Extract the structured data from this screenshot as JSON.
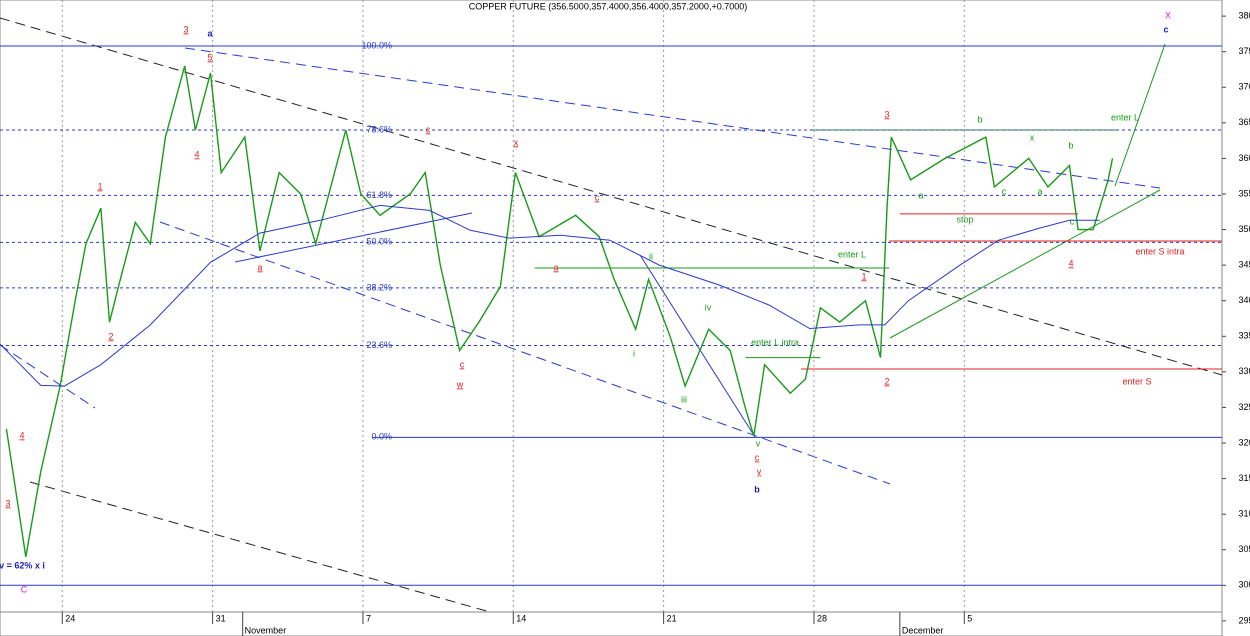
{
  "chart_data": {
    "type": "line",
    "title": "COPPER FUTURE (356.5000,357.4000,356.4000,357.2000,+0.7000)",
    "xlim": [
      21.1,
      78
    ],
    "ylim": [
      294,
      381
    ],
    "yticks": [
      295,
      300,
      305,
      310,
      315,
      320,
      325,
      330,
      335,
      340,
      345,
      350,
      355,
      360,
      365,
      370,
      375,
      380
    ],
    "xticks": [
      {
        "value": 24,
        "label": "24"
      },
      {
        "value": 31,
        "label": "31"
      },
      {
        "value": 38,
        "label": "7"
      },
      {
        "value": 45,
        "label": "14"
      },
      {
        "value": 52,
        "label": "21"
      },
      {
        "value": 59,
        "label": "28"
      },
      {
        "value": 66,
        "label": "5"
      }
    ],
    "months": [
      {
        "value": 32.4,
        "label": "November"
      },
      {
        "value": 63.0,
        "label": "December"
      }
    ],
    "grid": true,
    "series": [
      {
        "color": "#1a9a1a",
        "x": [
          21.4,
          22.3,
          23.0,
          23.9,
          24.6,
          25.1,
          25.8,
          26.2,
          26.7,
          27.4,
          28.1,
          28.8,
          29.7,
          30.2,
          30.9,
          31.4,
          32.5,
          33.2,
          34.1,
          35.1,
          35.8,
          37.2,
          37.9,
          38.8,
          40.2,
          40.9,
          41.6,
          42.5,
          43.4,
          44.4,
          45.1,
          46.2,
          47.9,
          49.0,
          49.7,
          50.7,
          51.3,
          52.3,
          53.0,
          54.1,
          55.1,
          55.8,
          56.2,
          56.7,
          57.9,
          58.6,
          59.3,
          60.2,
          61.4,
          62.1,
          62.4,
          62.6,
          63.5,
          65.1,
          67.0,
          67.4,
          69.0,
          69.9,
          70.9,
          71.3,
          72.0,
          72.7,
          72.9
        ],
        "values": [
          322,
          304,
          316,
          328,
          340,
          348,
          353,
          337,
          343,
          351,
          348,
          363,
          373,
          364,
          372,
          358,
          363,
          347,
          358,
          355,
          348,
          364,
          355,
          352,
          355,
          358,
          345,
          333,
          337,
          342,
          358,
          349,
          352,
          349,
          343,
          336,
          343,
          335,
          328,
          336,
          333,
          325,
          321,
          331,
          327,
          329,
          339,
          337,
          340,
          332,
          353,
          363,
          357,
          360,
          363,
          356,
          360,
          356,
          359,
          350,
          350,
          357,
          360
        ]
      },
      {
        "color": "#2a3acb",
        "x": [
          21.1,
          23.0,
          24.1,
          25.8,
          28.1,
          30.9,
          33.2,
          36.0,
          38.8,
          41.1,
          43.0,
          44.8,
          47.2,
          49.5,
          51.8,
          54.6,
          56.9,
          58.8,
          61.1,
          62.3,
          63.4,
          65.8,
          67.6,
          69.5,
          70.9,
          72.3
        ],
        "values": [
          333.9,
          328.1,
          328,
          331,
          336.6,
          345.4,
          349.5,
          351.3,
          353.4,
          352.7,
          349.9,
          348.8,
          349.2,
          348.5,
          345,
          342.2,
          339.4,
          336.1,
          336.6,
          336.6,
          340,
          345,
          348.5,
          350.2,
          351.3,
          351.3
        ]
      }
    ],
    "fib_levels": [
      {
        "label": "100.0%",
        "value": 375.8,
        "style": "solid"
      },
      {
        "label": "78.6%",
        "value": 364.0,
        "style": "dotted"
      },
      {
        "label": "61.8%",
        "value": 354.8,
        "style": "dotted"
      },
      {
        "label": "50.0%",
        "value": 348.2,
        "style": "dotted"
      },
      {
        "label": "38.2%",
        "value": 341.8,
        "style": "dotted"
      },
      {
        "label": "23.6%",
        "value": 333.7,
        "style": "dotted"
      },
      {
        "label": "0.0%",
        "value": 320.8,
        "style": "solid"
      }
    ],
    "levels": [
      {
        "value": 300,
        "color": "#2a3acb",
        "x": [
          21.1,
          78
        ]
      },
      {
        "value": 330.4,
        "color": "#e02020",
        "x": [
          58.4,
          78
        ]
      },
      {
        "value": 348.4,
        "color": "#e02020",
        "x": [
          62.5,
          78
        ]
      },
      {
        "value": 352.2,
        "color": "#e02020",
        "x": [
          63.0,
          71.3
        ]
      },
      {
        "value": 364.0,
        "color": "#1a9a1a",
        "x": [
          58.8,
          73.1
        ]
      },
      {
        "value": 344.6,
        "color": "#1a9a1a",
        "x": [
          46.0,
          62.5
        ]
      },
      {
        "value": 332.0,
        "color": "#1a9a1a",
        "x": [
          55.8,
          59.3
        ]
      }
    ],
    "annotations": [
      {
        "text": "3",
        "color": "#e02020"
      },
      {
        "text": "a",
        "color": "#1a1acb"
      },
      {
        "text": "5",
        "color": "#e02020"
      },
      {
        "text": "4",
        "color": "#e02020"
      },
      {
        "text": "1",
        "color": "#e02020"
      },
      {
        "text": "2",
        "color": "#e02020"
      },
      {
        "text": "4",
        "color": "#e02020"
      },
      {
        "text": "3",
        "color": "#e02020"
      },
      {
        "text": "v = 62% x i",
        "color": "#1a1acb"
      },
      {
        "text": "C",
        "color": "#d020d0"
      },
      {
        "text": "a",
        "color": "#e02020"
      },
      {
        "text": "c",
        "color": "#e02020"
      },
      {
        "text": "x",
        "color": "#e02020"
      },
      {
        "text": "c",
        "color": "#e02020"
      },
      {
        "text": "a",
        "color": "#e02020"
      },
      {
        "text": "c",
        "color": "#e02020"
      },
      {
        "text": "w",
        "color": "#e02020"
      },
      {
        "text": "ii",
        "color": "#1a9a1a"
      },
      {
        "text": "i",
        "color": "#1a9a1a"
      },
      {
        "text": "iv",
        "color": "#1a9a1a"
      },
      {
        "text": "iii",
        "color": "#1a9a1a"
      },
      {
        "text": "v",
        "color": "#1a9a1a"
      },
      {
        "text": "c",
        "color": "#e02020"
      },
      {
        "text": "y",
        "color": "#e02020"
      },
      {
        "text": "b",
        "color": "#1a1acb"
      },
      {
        "text": "enter L intra",
        "color": "#1a9a1a"
      },
      {
        "text": "enter L",
        "color": "#1a9a1a"
      },
      {
        "text": "1",
        "color": "#e02020"
      },
      {
        "text": "2",
        "color": "#e02020"
      },
      {
        "text": "3",
        "color": "#e02020"
      },
      {
        "text": "b",
        "color": "#1a9a1a"
      },
      {
        "text": "a",
        "color": "#1a9a1a"
      },
      {
        "text": "stop",
        "color": "#1a9a1a"
      },
      {
        "text": "c",
        "color": "#1a9a1a"
      },
      {
        "text": "x",
        "color": "#1a9a1a"
      },
      {
        "text": "a",
        "color": "#1a9a1a"
      },
      {
        "text": "b",
        "color": "#1a9a1a"
      },
      {
        "text": "c",
        "color": "#1a9a1a"
      },
      {
        "text": "4",
        "color": "#e02020"
      },
      {
        "text": "enter L",
        "color": "#1a9a1a"
      },
      {
        "text": "enter S intra",
        "color": "#e02020"
      },
      {
        "text": "enter S",
        "color": "#e02020"
      },
      {
        "text": "X",
        "color": "#d020d0"
      },
      {
        "text": "c",
        "color": "#1a1acb"
      }
    ]
  }
}
